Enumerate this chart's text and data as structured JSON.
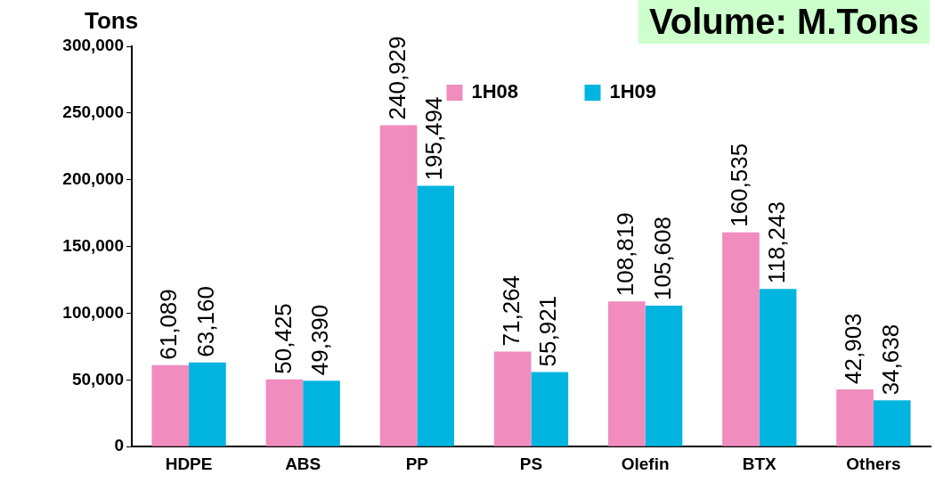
{
  "chart_data": {
    "type": "bar",
    "title": "Volume: M.Tons",
    "ylabel": "Tons",
    "categories": [
      "HDPE",
      "ABS",
      "PP",
      "PS",
      "Olefin",
      "BTX",
      "Others"
    ],
    "series": [
      {
        "name": "1H08",
        "color": "#f08cbe",
        "values": [
          61089,
          50425,
          240929,
          71264,
          108819,
          160535,
          42903
        ],
        "value_labels": [
          "61,089",
          "50,425",
          "240,929",
          "71,264",
          "108,819",
          "160,535",
          "42,903"
        ]
      },
      {
        "name": "1H09",
        "color": "#00b4e0",
        "values": [
          63160,
          49390,
          195494,
          55921,
          105608,
          118243,
          34638
        ],
        "value_labels": [
          "63,160",
          "49,390",
          "195,494",
          "55,921",
          "105,608",
          "118,243",
          "34,638"
        ]
      }
    ],
    "ylim": [
      0,
      300000
    ],
    "yticks": [
      {
        "value": 0,
        "label": "0"
      },
      {
        "value": 50000,
        "label": "50,000"
      },
      {
        "value": 100000,
        "label": "100,000"
      },
      {
        "value": 150000,
        "label": "150,000"
      },
      {
        "value": 200000,
        "label": "200,000"
      },
      {
        "value": 250000,
        "label": "250,000"
      },
      {
        "value": 300000,
        "label": "300,000"
      }
    ],
    "legend": "top",
    "grid": false
  }
}
